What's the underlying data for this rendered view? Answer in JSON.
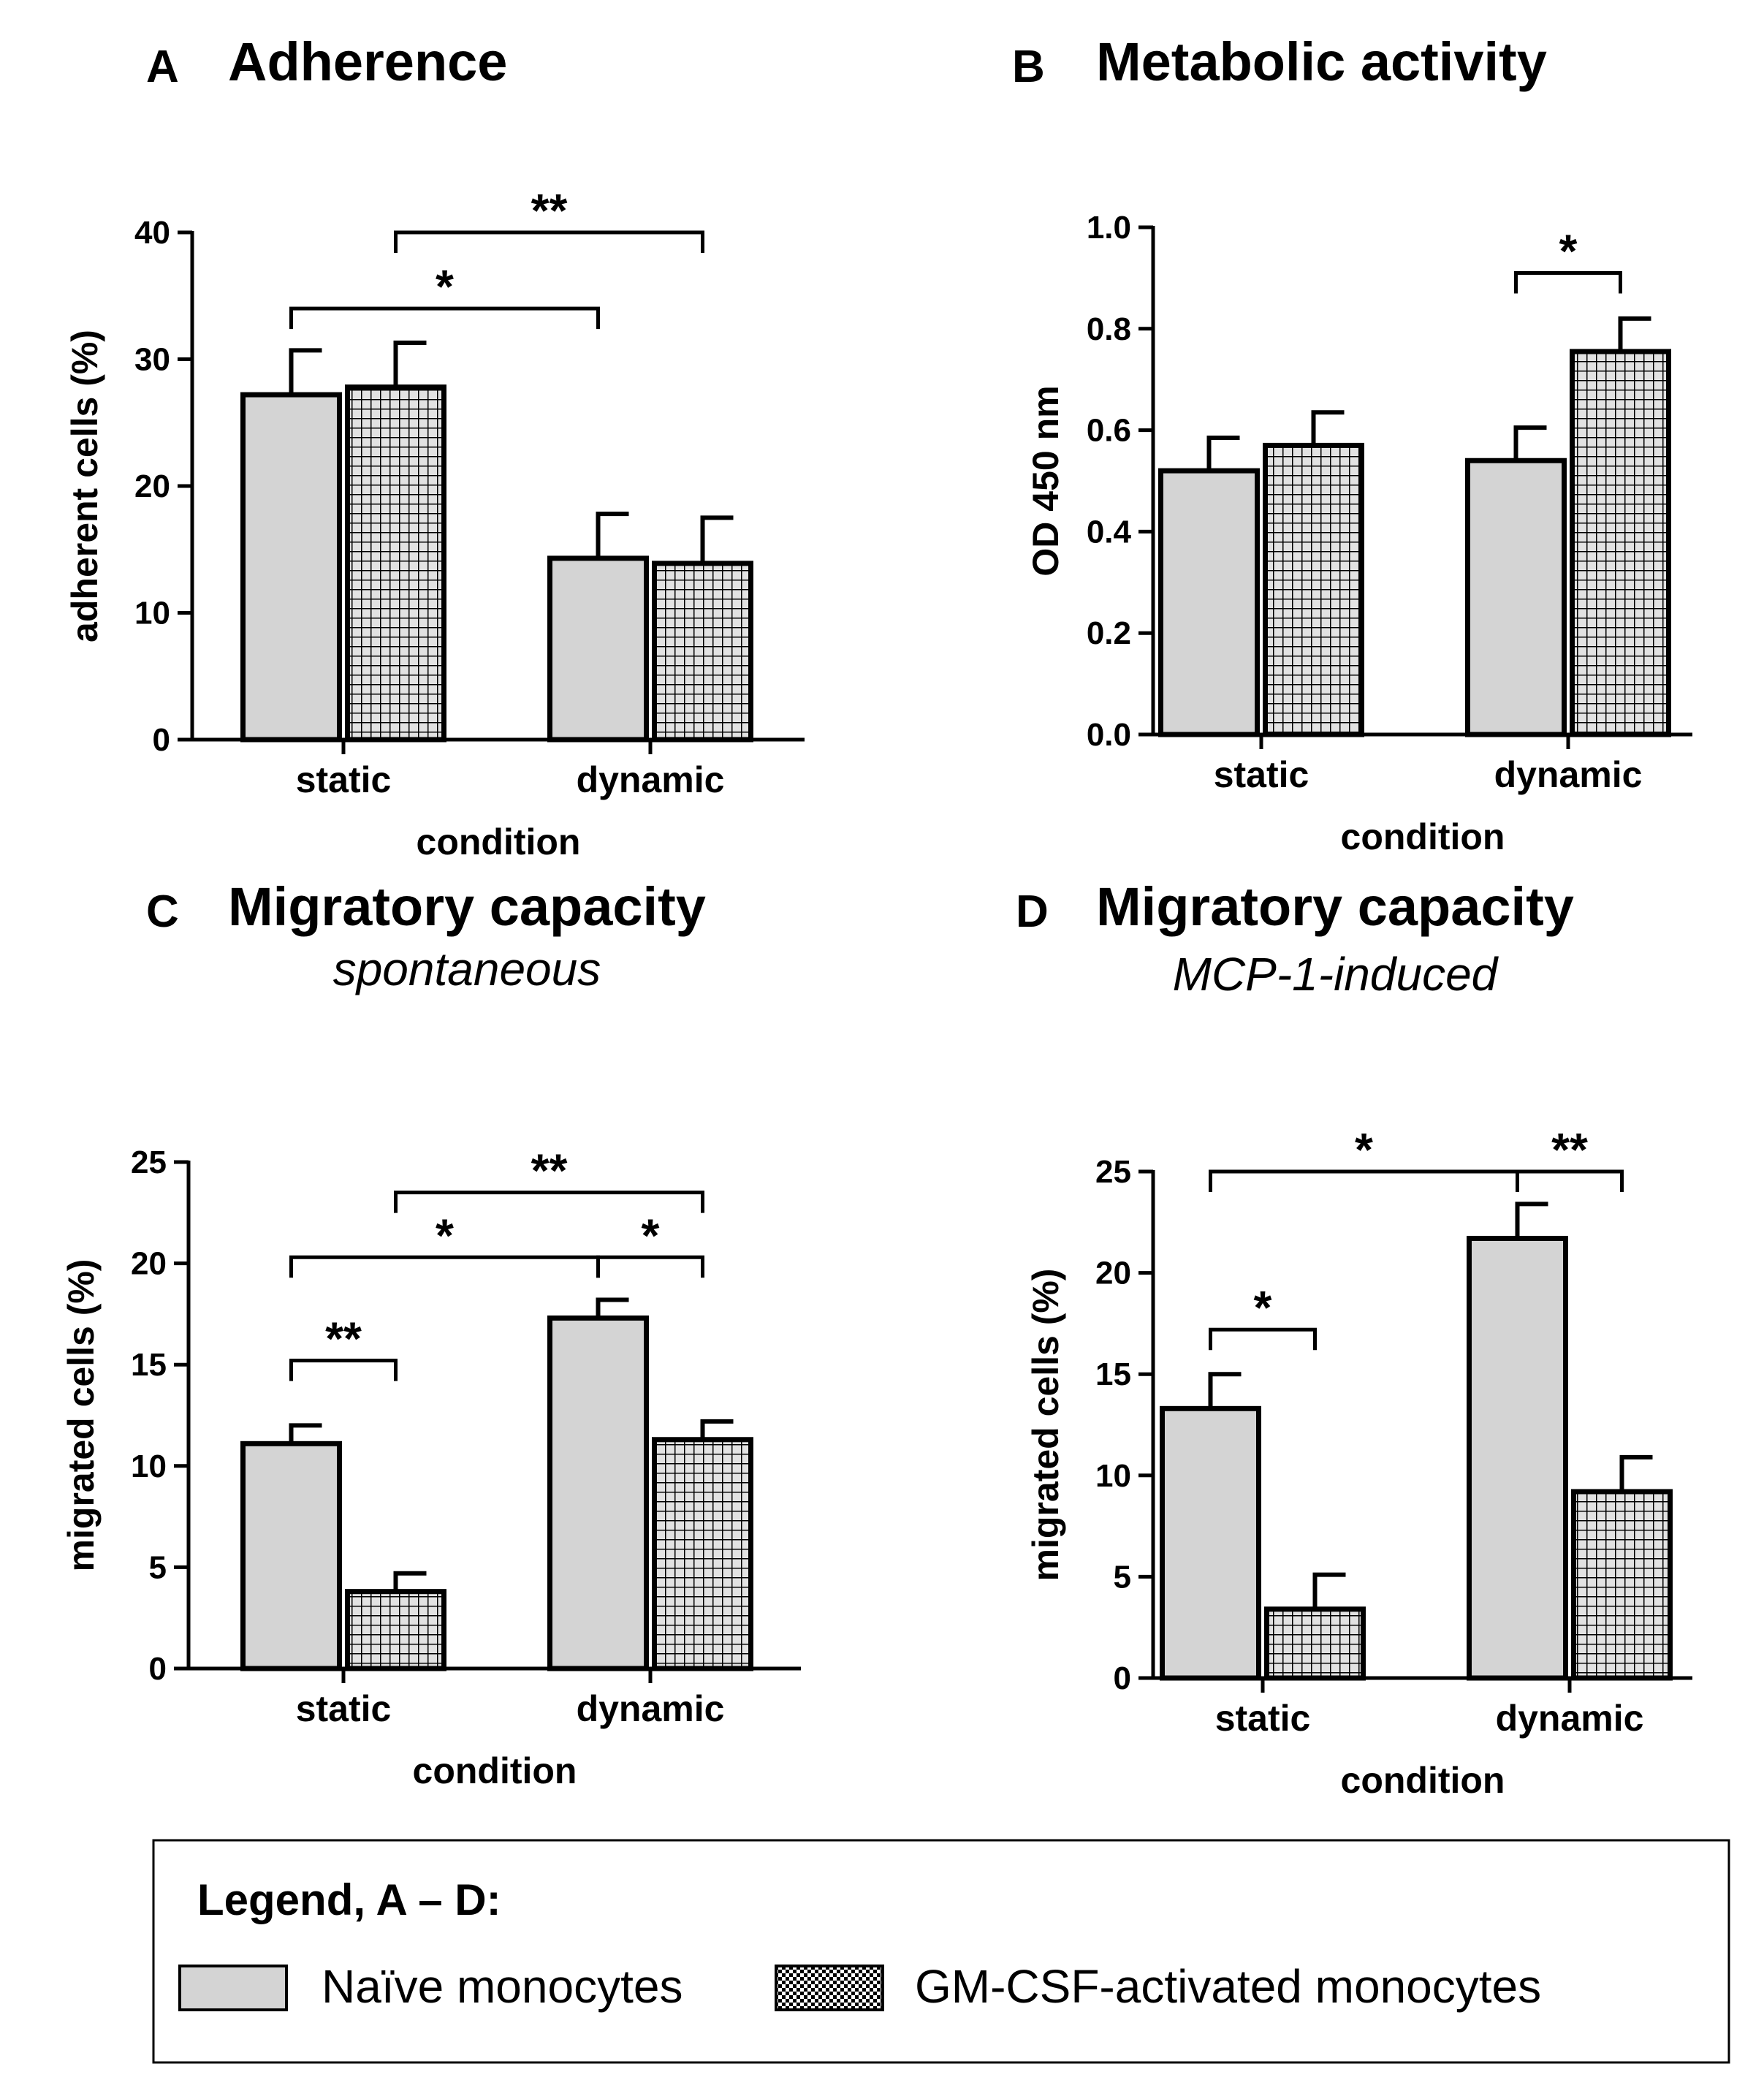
{
  "legend": {
    "title": "Legend, A – D:",
    "items": [
      {
        "label": "Naïve monocytes",
        "pattern": "solid-gray"
      },
      {
        "label": "GM-CSF-activated monocytes",
        "pattern": "checkered"
      }
    ]
  },
  "colors": {
    "naive_fill": "#d4d4d4",
    "grid_fill": "#e0e0e0",
    "stroke": "#000000"
  },
  "chart_data": [
    {
      "id": "A",
      "letter": "A",
      "type": "bar",
      "title": "Adherence",
      "subtitle": "",
      "xlabel": "condition",
      "ylabel": "adherent cells (%)",
      "categories": [
        "static",
        "dynamic"
      ],
      "series": [
        {
          "name": "Naïve monocytes",
          "values": [
            27.2,
            14.3
          ],
          "errors": [
            3.5,
            3.5
          ]
        },
        {
          "name": "GM-CSF-activated monocytes",
          "values": [
            27.8,
            13.9
          ],
          "errors": [
            3.5,
            3.6
          ]
        }
      ],
      "ylim": [
        0,
        40
      ],
      "yticks": [
        0,
        10,
        20,
        30,
        40
      ],
      "ytick_labels": [
        "0",
        "10",
        "20",
        "30",
        "40"
      ],
      "significance": [
        {
          "from": [
            0,
            0
          ],
          "to": [
            1,
            0
          ],
          "y": 34,
          "label": "*"
        },
        {
          "from": [
            0,
            1
          ],
          "to": [
            1,
            1
          ],
          "y": 40,
          "label": "**"
        }
      ]
    },
    {
      "id": "B",
      "letter": "B",
      "type": "bar",
      "title": "Metabolic activity",
      "subtitle": "",
      "xlabel": "condition",
      "ylabel": "OD 450 nm",
      "categories": [
        "static",
        "dynamic"
      ],
      "series": [
        {
          "name": "Naïve monocytes",
          "values": [
            0.52,
            0.54
          ],
          "errors": [
            0.065,
            0.065
          ]
        },
        {
          "name": "GM-CSF-activated monocytes",
          "values": [
            0.57,
            0.755
          ],
          "errors": [
            0.065,
            0.065
          ]
        }
      ],
      "ylim": [
        0,
        1.0
      ],
      "yticks": [
        0,
        0.2,
        0.4,
        0.6,
        0.8,
        1.0
      ],
      "ytick_labels": [
        "0.0",
        "0.2",
        "0.4",
        "0.6",
        "0.8",
        "1.0"
      ],
      "significance": [
        {
          "from": [
            1,
            0
          ],
          "to": [
            1,
            1
          ],
          "y": 0.91,
          "label": "*"
        }
      ]
    },
    {
      "id": "C",
      "letter": "C",
      "type": "bar",
      "title": "Migratory capacity",
      "subtitle": "spontaneous",
      "xlabel": "condition",
      "ylabel": "migrated cells (%)",
      "categories": [
        "static",
        "dynamic"
      ],
      "series": [
        {
          "name": "Naïve monocytes",
          "values": [
            11.1,
            17.3
          ],
          "errors": [
            0.9,
            0.9
          ]
        },
        {
          "name": "GM-CSF-activated monocytes",
          "values": [
            3.8,
            11.3
          ],
          "errors": [
            0.9,
            0.9
          ]
        }
      ],
      "ylim": [
        0,
        25
      ],
      "yticks": [
        0,
        5,
        10,
        15,
        20,
        25
      ],
      "ytick_labels": [
        "0",
        "5",
        "10",
        "15",
        "20",
        "25"
      ],
      "significance": [
        {
          "from": [
            0,
            0
          ],
          "to": [
            0,
            1
          ],
          "y": 15.2,
          "label": "**"
        },
        {
          "from": [
            0,
            0
          ],
          "to": [
            1,
            0
          ],
          "y": 20.3,
          "label": "*"
        },
        {
          "from": [
            1,
            0
          ],
          "to": [
            1,
            1
          ],
          "y": 20.3,
          "label": "*"
        },
        {
          "from": [
            0,
            1
          ],
          "to": [
            1,
            1
          ],
          "y": 23.5,
          "label": "**"
        }
      ]
    },
    {
      "id": "D",
      "letter": "D",
      "type": "bar",
      "title": "Migratory capacity",
      "subtitle": "MCP-1-induced",
      "xlabel": "condition",
      "ylabel": "migrated cells (%)",
      "categories": [
        "static",
        "dynamic"
      ],
      "series": [
        {
          "name": "Naïve monocytes",
          "values": [
            13.3,
            21.7
          ],
          "errors": [
            1.7,
            1.7
          ]
        },
        {
          "name": "GM-CSF-activated monocytes",
          "values": [
            3.4,
            9.2
          ],
          "errors": [
            1.7,
            1.7
          ]
        }
      ],
      "ylim": [
        0,
        25
      ],
      "yticks": [
        0,
        5,
        10,
        15,
        20,
        25
      ],
      "ytick_labels": [
        "0",
        "5",
        "10",
        "15",
        "20",
        "25"
      ],
      "significance": [
        {
          "from": [
            0,
            0
          ],
          "to": [
            0,
            1
          ],
          "y": 17.2,
          "label": "*"
        },
        {
          "from": [
            0,
            0
          ],
          "to": [
            1,
            0
          ],
          "y": 25.0,
          "label": "*"
        },
        {
          "from": [
            1,
            0
          ],
          "to": [
            1,
            1
          ],
          "y": 25.0,
          "label": "**"
        }
      ]
    }
  ]
}
